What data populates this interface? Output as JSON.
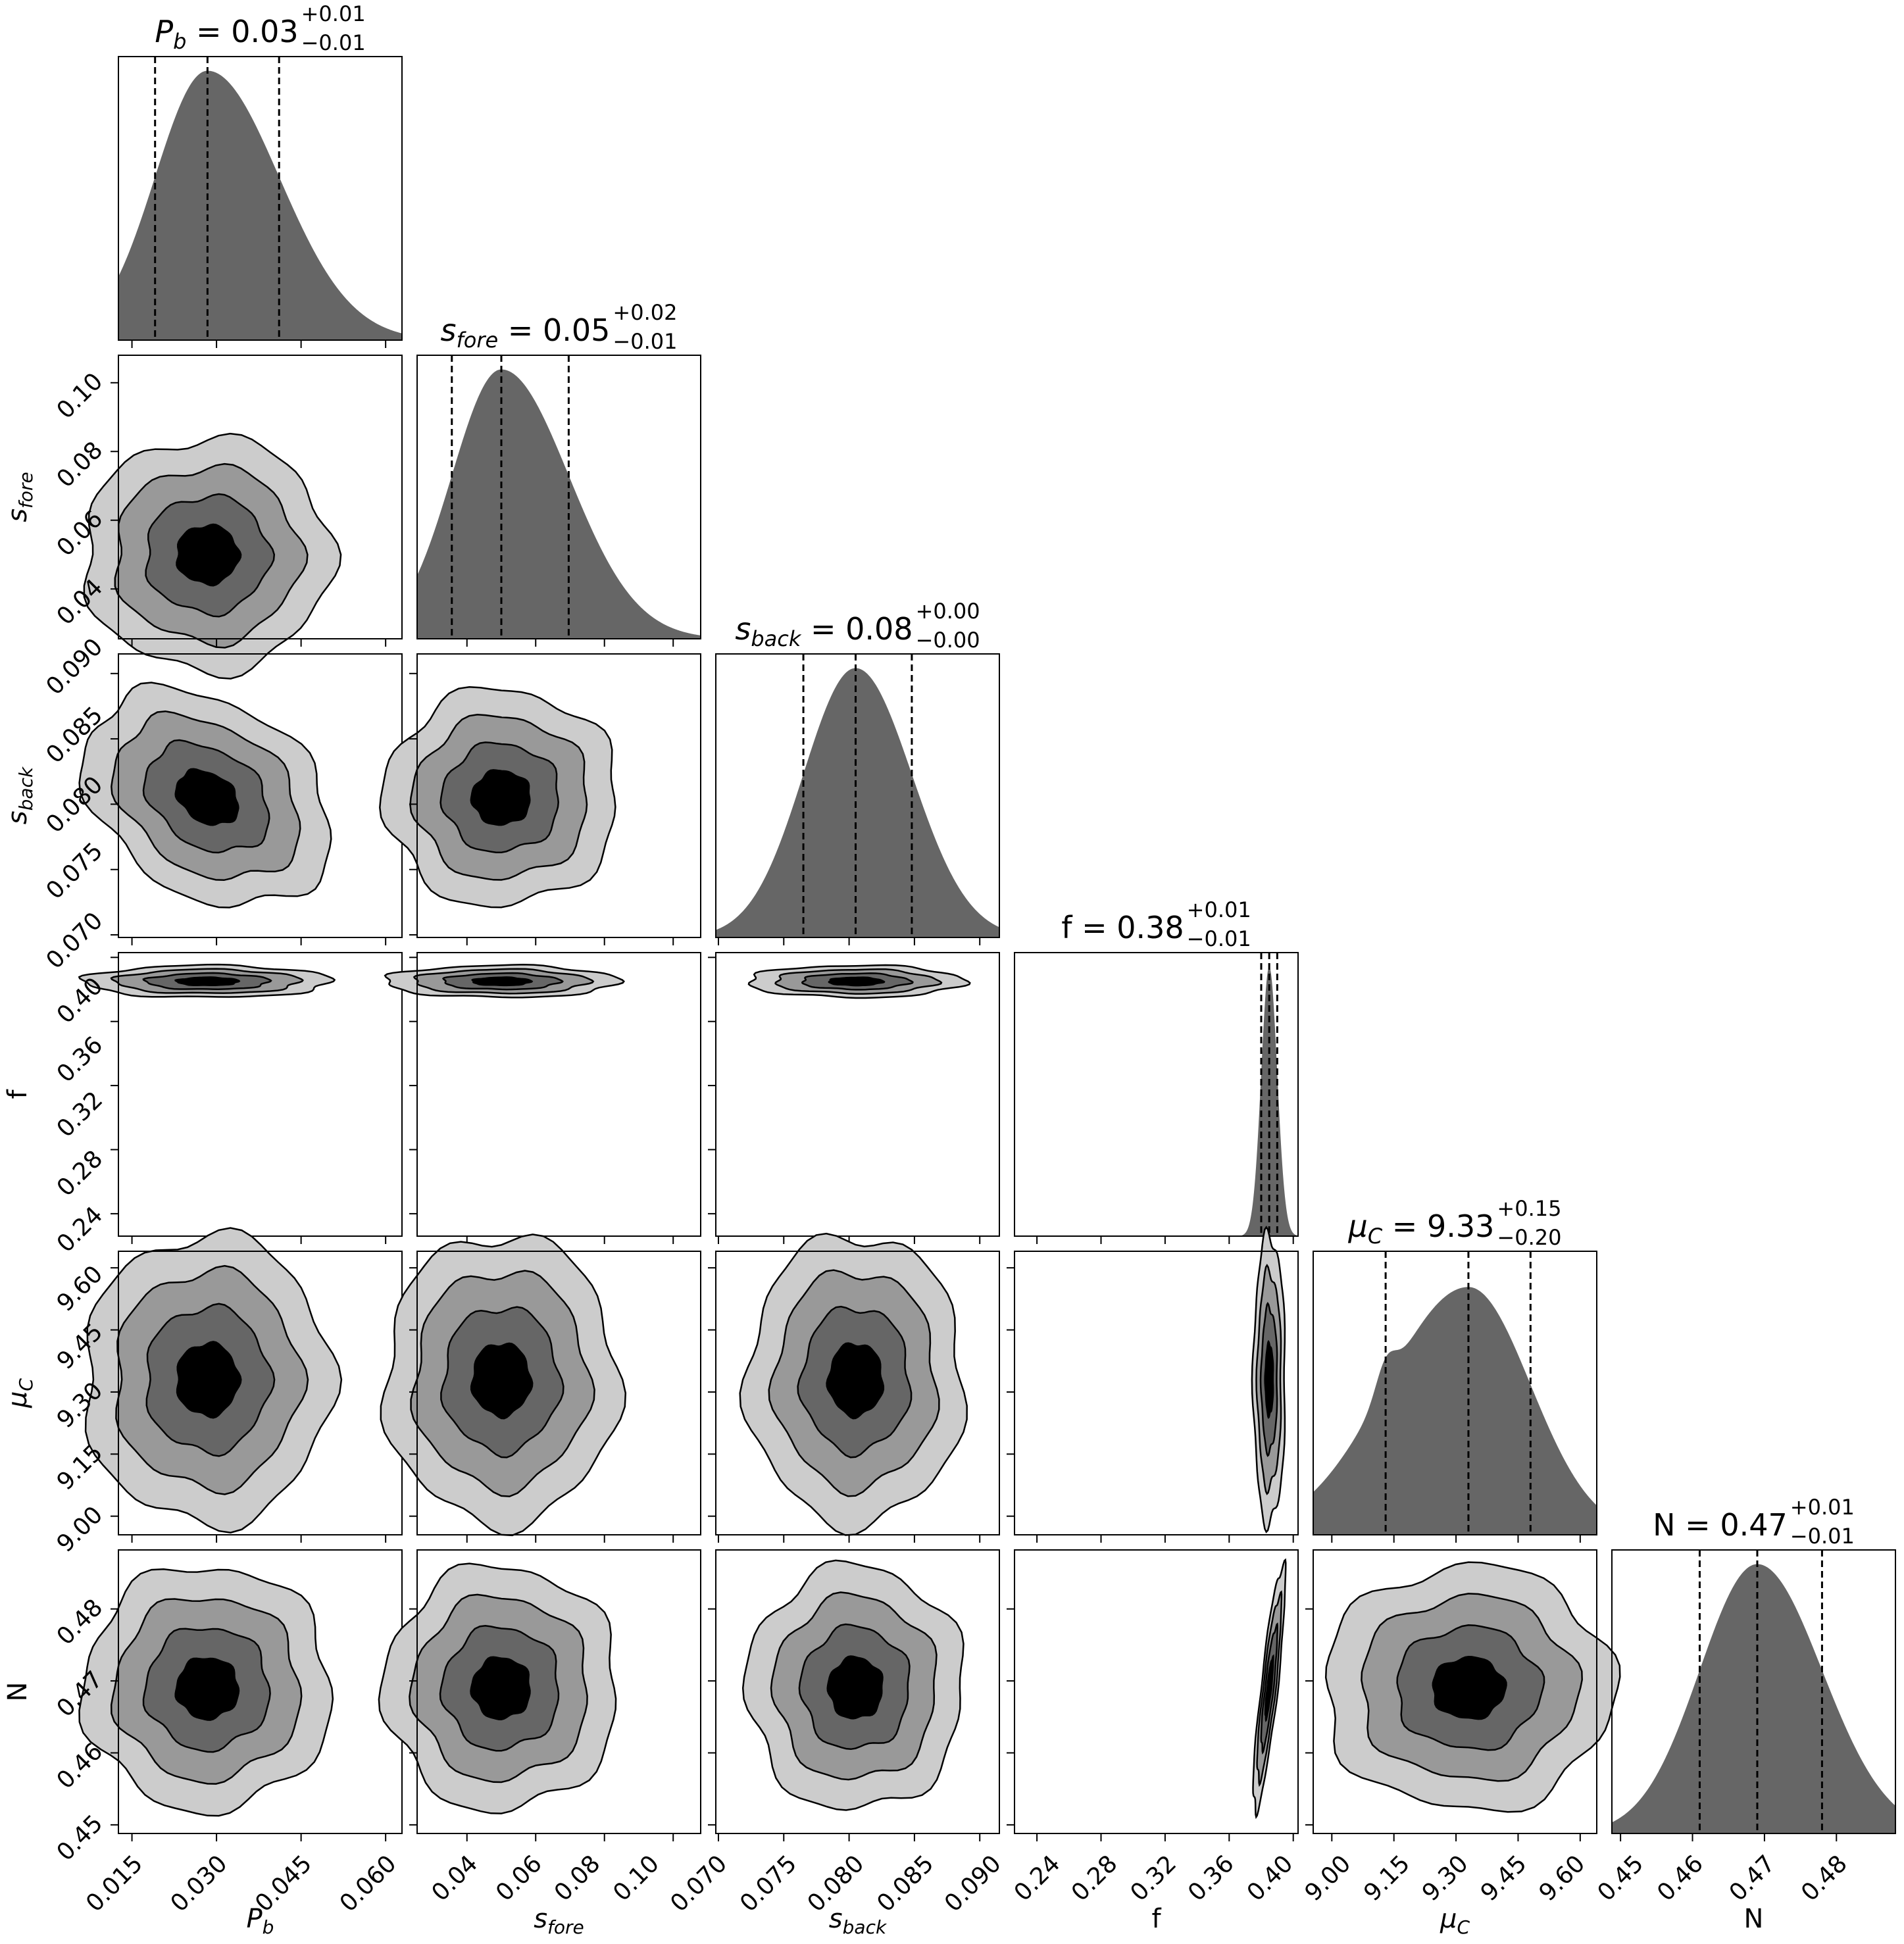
{
  "chart_data": {
    "type": "corner",
    "title": "",
    "contour_colors": [
      "#cccccc",
      "#999999",
      "#666666",
      "#000000"
    ],
    "hist_color": "#666666",
    "parameters": [
      {
        "symbol": "P",
        "sub": "b",
        "italic": true,
        "value": "0.03",
        "plus": "+0.01",
        "minus": "−0.01",
        "median": 0.0284,
        "q16": 0.0191,
        "q84": 0.0411,
        "range": [
          0.0126,
          0.0629
        ],
        "ticks": [
          0.015,
          0.03,
          0.045,
          0.06
        ],
        "tick_labels": [
          "0.015",
          "0.030",
          "0.045",
          "0.060"
        ]
      },
      {
        "symbol": "s",
        "sub": "fore",
        "italic": true,
        "value": "0.05",
        "plus": "+0.02",
        "minus": "−0.01",
        "median": 0.05,
        "q16": 0.0356,
        "q84": 0.0696,
        "range": [
          0.0255,
          0.108
        ],
        "ticks": [
          0.04,
          0.06,
          0.08,
          0.1
        ],
        "tick_labels": [
          "0.04",
          "0.06",
          "0.08",
          "0.10"
        ]
      },
      {
        "symbol": "s",
        "sub": "back",
        "italic": true,
        "value": "0.08",
        "plus": "+0.00",
        "minus": "−0.00",
        "median": 0.0805,
        "q16": 0.0765,
        "q84": 0.0848,
        "range": [
          0.0698,
          0.0915
        ],
        "ticks": [
          0.07,
          0.075,
          0.08,
          0.085,
          0.09
        ],
        "tick_labels": [
          "0.070",
          "0.075",
          "0.080",
          "0.085",
          "0.090"
        ]
      },
      {
        "symbol": "f",
        "sub": "",
        "italic": false,
        "value": "0.38",
        "plus": "+0.01",
        "minus": "−0.01",
        "median": 0.385,
        "q16": 0.38,
        "q84": 0.39,
        "range": [
          0.226,
          0.403
        ],
        "ticks": [
          0.24,
          0.28,
          0.32,
          0.36,
          0.4
        ],
        "tick_labels": [
          "0.24",
          "0.28",
          "0.32",
          "0.36",
          "0.40"
        ]
      },
      {
        "symbol": "μ",
        "sub": "C",
        "italic": true,
        "value": "9.33",
        "plus": "+0.15",
        "minus": "−0.20",
        "median": 9.33,
        "q16": 9.13,
        "q84": 9.48,
        "range": [
          8.955,
          9.64
        ],
        "secondary_mode": 9.13,
        "ticks": [
          9.0,
          9.15,
          9.3,
          9.45,
          9.6
        ],
        "tick_labels": [
          "9.00",
          "9.15",
          "9.30",
          "9.45",
          "9.60"
        ]
      },
      {
        "symbol": "N",
        "sub": "",
        "italic": false,
        "value": "0.47",
        "plus": "+0.01",
        "minus": "−0.01",
        "median": 0.469,
        "q16": 0.461,
        "q84": 0.478,
        "range": [
          0.4488,
          0.4882
        ],
        "ticks": [
          0.45,
          0.46,
          0.47,
          0.48
        ],
        "tick_labels": [
          "0.45",
          "0.46",
          "0.47",
          "0.48"
        ]
      }
    ],
    "correlations": [
      [
        0,
        2,
        -0.3
      ],
      [
        3,
        5,
        0.85
      ]
    ]
  }
}
